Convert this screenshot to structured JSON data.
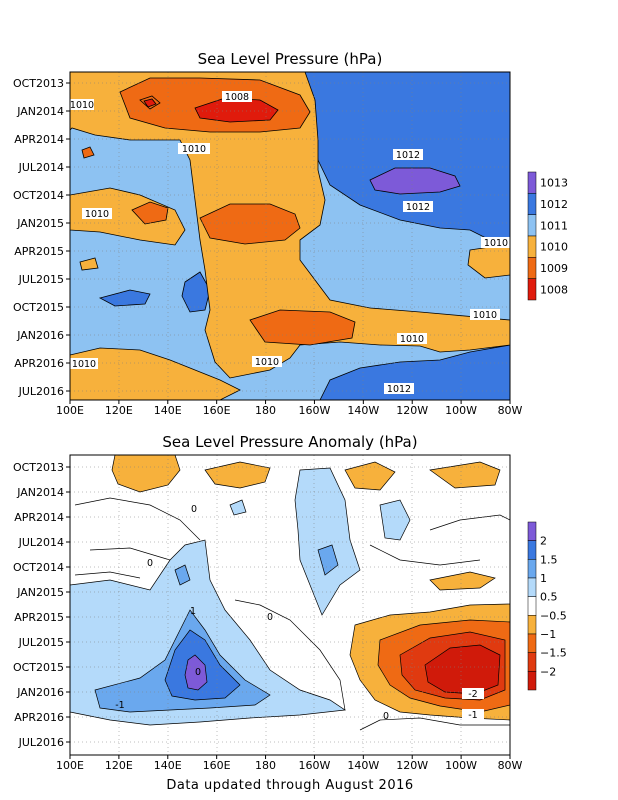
{
  "chart_data": [
    {
      "type": "heatmap",
      "title": "Sea Level Pressure (hPa)",
      "x_ticks": [
        "100E",
        "120E",
        "140E",
        "160E",
        "180",
        "160W",
        "140W",
        "120W",
        "100W",
        "80W"
      ],
      "y_ticks": [
        "OCT2013",
        "JAN2014",
        "APR2014",
        "JUL2014",
        "OCT2014",
        "JAN2015",
        "APR2015",
        "JUL2015",
        "OCT2015",
        "JAN2016",
        "APR2016",
        "JUL2016"
      ],
      "colorbar": {
        "labels": [
          "1013",
          "1012",
          "1011",
          "1010",
          "1009",
          "1008"
        ],
        "colors": [
          "#7d5ad8",
          "#3a78e0",
          "#8dc2f2",
          "#f7b13c",
          "#ef6a14",
          "#e01b0c"
        ]
      },
      "contour_labels": [
        "1008",
        "1010",
        "1010",
        "1012",
        "1012",
        "1010",
        "1010",
        "1010",
        "1010",
        "1010",
        "1010",
        "1012",
        "1010"
      ]
    },
    {
      "type": "heatmap",
      "title": "Sea Level Pressure Anomaly (hPa)",
      "x_ticks": [
        "100E",
        "120E",
        "140E",
        "160E",
        "180",
        "160W",
        "140W",
        "120W",
        "100W",
        "80W"
      ],
      "y_ticks": [
        "OCT2013",
        "JAN2014",
        "APR2014",
        "JUL2014",
        "OCT2014",
        "JAN2015",
        "APR2015",
        "JUL2015",
        "OCT2015",
        "JAN2016",
        "APR2016",
        "JUL2016"
      ],
      "colorbar": {
        "labels": [
          "2",
          "1.5",
          "1",
          "0.5",
          "−0.5",
          "−1",
          "−1.5",
          "−2"
        ],
        "colors": [
          "#7d5ad8",
          "#3a78e0",
          "#6aa8ee",
          "#b4dafa",
          "#ffffff",
          "#f7b13c",
          "#ef6a14",
          "#e03a10",
          "#d01a0a"
        ]
      },
      "contour_labels": [
        "0",
        "0",
        "0",
        "1",
        "0",
        "-1",
        "-2",
        "-1",
        "0"
      ]
    }
  ],
  "footer": "Data updated through August 2016"
}
